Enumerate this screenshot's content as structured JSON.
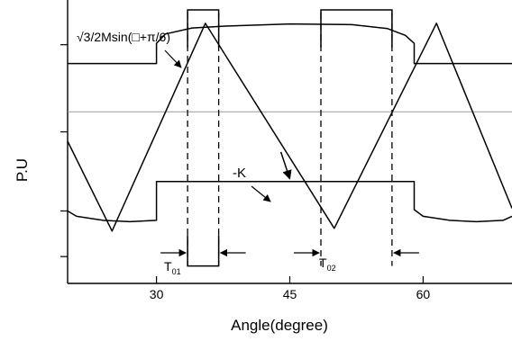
{
  "chart_data": {
    "type": "line",
    "title": "",
    "xlabel": "Angle(degree)",
    "ylabel": "P.U",
    "xlim": [
      20,
      70
    ],
    "x_ticks": [
      30,
      45,
      60
    ],
    "x_tick_labels": [
      "30",
      "45",
      "60"
    ],
    "grid": false,
    "legend": "none",
    "series": [
      {
        "id": "upper_envelope",
        "points": [
          [
            20,
            0.58
          ],
          [
            30,
            0.58
          ],
          [
            30,
            0.73
          ],
          [
            31,
            0.8
          ],
          [
            34,
            0.845
          ],
          [
            38,
            0.86
          ],
          [
            45,
            0.875
          ],
          [
            52,
            0.87
          ],
          [
            56,
            0.84
          ],
          [
            58,
            0.79
          ],
          [
            59,
            0.73
          ],
          [
            59,
            0.58
          ],
          [
            70,
            0.58
          ]
        ]
      },
      {
        "id": "lower_envelope",
        "points": [
          [
            20,
            -0.52
          ],
          [
            21,
            -0.56
          ],
          [
            24,
            -0.59
          ],
          [
            27,
            -0.6
          ],
          [
            30,
            -0.59
          ],
          [
            30,
            -0.3
          ],
          [
            59,
            -0.3
          ],
          [
            59,
            -0.51
          ],
          [
            60,
            -0.56
          ],
          [
            63,
            -0.59
          ],
          [
            66,
            -0.6
          ],
          [
            69,
            -0.59
          ],
          [
            70,
            -0.56
          ]
        ]
      },
      {
        "id": "triangular_carrier",
        "points": [
          [
            20,
            0.0
          ],
          [
            25,
            -0.67
          ],
          [
            35.5,
            0.88
          ],
          [
            50,
            -0.65
          ],
          [
            61.5,
            0.88
          ],
          [
            70,
            -0.5
          ]
        ]
      },
      {
        "id": "signal_K",
        "points": [
          [
            44,
            -0.08
          ],
          [
            45,
            -0.28
          ]
        ]
      }
    ],
    "pulses": [
      {
        "x_start": 33.5,
        "x_end": 37,
        "y_high": 0.98,
        "y_low": -0.93
      },
      {
        "x_start": 48.5,
        "x_end": 56.5,
        "y_high": 0.98,
        "y_low": -0.77
      }
    ],
    "dashed_markers_x": [
      33.5,
      37,
      48.5,
      56.5
    ],
    "reference_line_y": 0.22,
    "annotations": {
      "top": "√3/2Msin(□+π/6)",
      "mid": "-K",
      "t1": "T",
      "t1_sub": "01",
      "t2": "T",
      "t2_sub": "02"
    }
  },
  "colors": {
    "line": "#000000",
    "axis": "#000000",
    "reference": "#999999",
    "background": "#ffffff"
  }
}
